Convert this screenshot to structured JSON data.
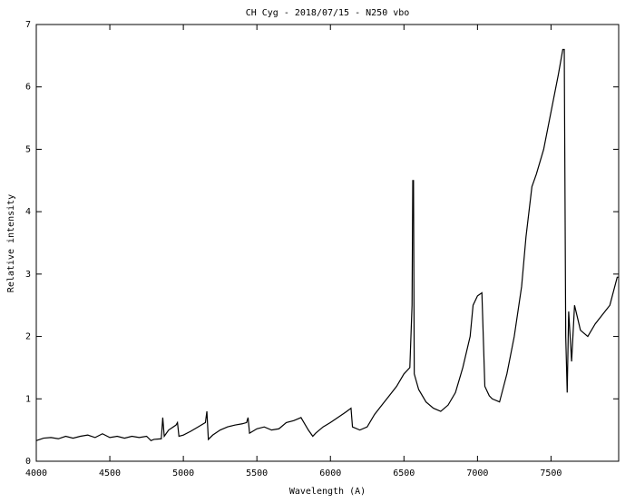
{
  "chart_data": {
    "type": "line",
    "title": "CH Cyg - 2018/07/15 - N250 vbo",
    "xlabel": "Wavelength (A)",
    "ylabel": "Relative intensity",
    "color": "#000000",
    "x": [
      4000,
      4050,
      4100,
      4150,
      4200,
      4250,
      4300,
      4350,
      4400,
      4450,
      4500,
      4550,
      4600,
      4650,
      4700,
      4750,
      4780,
      4800,
      4850,
      4860,
      4870,
      4900,
      4950,
      4960,
      4970,
      5000,
      5050,
      5100,
      5150,
      5160,
      5170,
      5200,
      5250,
      5300,
      5350,
      5400,
      5430,
      5440,
      5450,
      5500,
      5550,
      5600,
      5650,
      5700,
      5750,
      5800,
      5820,
      5850,
      5880,
      5900,
      5950,
      6000,
      6050,
      6100,
      6140,
      6150,
      6200,
      6250,
      6300,
      6350,
      6400,
      6450,
      6500,
      6540,
      6555,
      6560,
      6565,
      6570,
      6600,
      6650,
      6700,
      6750,
      6800,
      6850,
      6900,
      6950,
      6970,
      7000,
      7030,
      7050,
      7080,
      7100,
      7150,
      7200,
      7250,
      7300,
      7330,
      7370,
      7400,
      7450,
      7500,
      7550,
      7580,
      7590,
      7600,
      7610,
      7620,
      7640,
      7660,
      7700,
      7750,
      7800,
      7850,
      7900,
      7950,
      7960
    ],
    "values": [
      0.33,
      0.37,
      0.38,
      0.36,
      0.4,
      0.37,
      0.4,
      0.42,
      0.38,
      0.44,
      0.38,
      0.4,
      0.37,
      0.4,
      0.38,
      0.4,
      0.33,
      0.35,
      0.36,
      0.7,
      0.4,
      0.5,
      0.58,
      0.62,
      0.4,
      0.42,
      0.48,
      0.55,
      0.62,
      0.8,
      0.35,
      0.42,
      0.5,
      0.55,
      0.58,
      0.6,
      0.62,
      0.7,
      0.45,
      0.52,
      0.55,
      0.5,
      0.52,
      0.62,
      0.65,
      0.7,
      0.62,
      0.5,
      0.4,
      0.45,
      0.55,
      0.62,
      0.7,
      0.78,
      0.85,
      0.55,
      0.5,
      0.55,
      0.75,
      0.9,
      1.05,
      1.2,
      1.4,
      1.5,
      2.5,
      4.5,
      4.5,
      1.4,
      1.15,
      0.95,
      0.85,
      0.8,
      0.9,
      1.1,
      1.5,
      2.0,
      2.5,
      2.65,
      2.7,
      1.2,
      1.05,
      1.0,
      0.95,
      1.4,
      2.0,
      2.8,
      3.6,
      4.4,
      4.6,
      5.0,
      5.6,
      6.2,
      6.6,
      6.6,
      2.0,
      1.1,
      2.4,
      1.6,
      2.5,
      2.1,
      2.0,
      2.2,
      2.35,
      2.5,
      2.95,
      2.95
    ],
    "xlim": [
      4000,
      7960
    ],
    "xticks": [
      4000,
      4500,
      5000,
      5500,
      6000,
      6500,
      7000,
      7500
    ],
    "ylim": [
      0,
      7
    ],
    "yticks": [
      0,
      1,
      2,
      3,
      4,
      5,
      6,
      7
    ]
  }
}
